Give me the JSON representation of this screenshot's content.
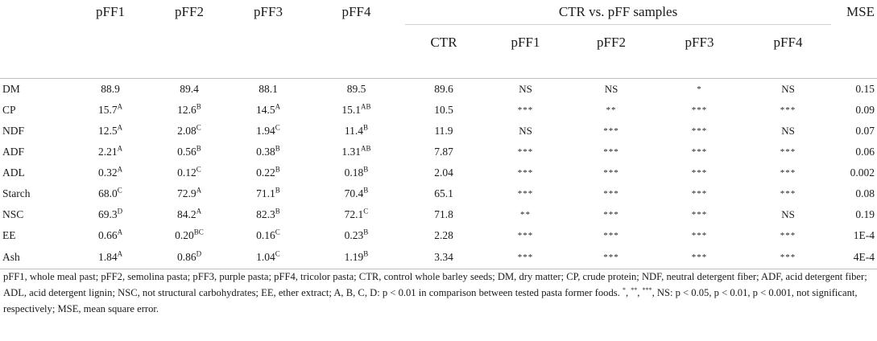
{
  "header": {
    "pFF_cols": [
      "pFF1",
      "pFF2",
      "pFF3",
      "pFF4"
    ],
    "group_title": "CTR vs. pFF samples",
    "mse_label": "MSE",
    "sub_cols": [
      "CTR",
      "pFF1",
      "pFF2",
      "pFF3",
      "pFF4"
    ]
  },
  "rows": [
    {
      "label": "DM",
      "v1": "88.9",
      "s1": "",
      "v2": "89.4",
      "s2": "",
      "v3": "88.1",
      "s3": "",
      "v4": "89.5",
      "s4": "",
      "ctr": "89.6",
      "c1": "NS",
      "c2": "NS",
      "c3": "*",
      "c4": "NS",
      "mse": "0.15"
    },
    {
      "label": "CP",
      "v1": "15.7",
      "s1": "A",
      "v2": "12.6",
      "s2": "B",
      "v3": "14.5",
      "s3": "A",
      "v4": "15.1",
      "s4": "AB",
      "ctr": "10.5",
      "c1": "***",
      "c2": "**",
      "c3": "***",
      "c4": "***",
      "mse": "0.09"
    },
    {
      "label": "NDF",
      "v1": "12.5",
      "s1": "A",
      "v2": "2.08",
      "s2": "C",
      "v3": "1.94",
      "s3": "C",
      "v4": "11.4",
      "s4": "B",
      "ctr": "11.9",
      "c1": "NS",
      "c2": "***",
      "c3": "***",
      "c4": "NS",
      "mse": "0.07"
    },
    {
      "label": "ADF",
      "v1": "2.21",
      "s1": "A",
      "v2": "0.56",
      "s2": "B",
      "v3": "0.38",
      "s3": "B",
      "v4": "1.31",
      "s4": "AB",
      "ctr": "7.87",
      "c1": "***",
      "c2": "***",
      "c3": "***",
      "c4": "***",
      "mse": "0.06"
    },
    {
      "label": "ADL",
      "v1": "0.32",
      "s1": "A",
      "v2": "0.12",
      "s2": "C",
      "v3": "0.22",
      "s3": "B",
      "v4": "0.18",
      "s4": "B",
      "ctr": "2.04",
      "c1": "***",
      "c2": "***",
      "c3": "***",
      "c4": "***",
      "mse": "0.002"
    },
    {
      "label": "Starch",
      "v1": "68.0",
      "s1": "C",
      "v2": "72.9",
      "s2": "A",
      "v3": "71.1",
      "s3": "B",
      "v4": "70.4",
      "s4": "B",
      "ctr": "65.1",
      "c1": "***",
      "c2": "***",
      "c3": "***",
      "c4": "***",
      "mse": "0.08"
    },
    {
      "label": "NSC",
      "v1": "69.3",
      "s1": "D",
      "v2": "84.2",
      "s2": "A",
      "v3": "82.3",
      "s3": "B",
      "v4": "72.1",
      "s4": "C",
      "ctr": "71.8",
      "c1": "**",
      "c2": "***",
      "c3": "***",
      "c4": "NS",
      "mse": "0.19"
    },
    {
      "label": "EE",
      "v1": "0.66",
      "s1": "A",
      "v2": "0.20",
      "s2": "BC",
      "v3": "0.16",
      "s3": "C",
      "v4": "0.23",
      "s4": "B",
      "ctr": "2.28",
      "c1": "***",
      "c2": "***",
      "c3": "***",
      "c4": "***",
      "mse": "1E-4"
    },
    {
      "label": "Ash",
      "v1": "1.84",
      "s1": "A",
      "v2": "0.86",
      "s2": "D",
      "v3": "1.04",
      "s3": "C",
      "v4": "1.19",
      "s4": "B",
      "ctr": "3.34",
      "c1": "***",
      "c2": "***",
      "c3": "***",
      "c4": "***",
      "mse": "4E-4"
    }
  ],
  "footnote": {
    "part1": "pFF1, whole meal past; pFF2, semolina pasta; pFF3, purple pasta; pFF4, tricolor pasta; CTR, control whole barley seeds; DM, dry matter; CP, crude protein; NDF, neutral detergent fiber; ADF, acid detergent fiber; ADL, acid detergent lignin; NSC, not structural carbohydrates; EE, ether extract; A, B, C, D: p < 0.01 in comparison between tested pasta former foods.",
    "star1": "*",
    "sep1": ", ",
    "star2": "**",
    "sep2": ", ",
    "star3": "***",
    "part2": ", NS: p < 0.05, p < 0.01, p < 0.001, not significant, respectively; MSE, mean square error."
  }
}
